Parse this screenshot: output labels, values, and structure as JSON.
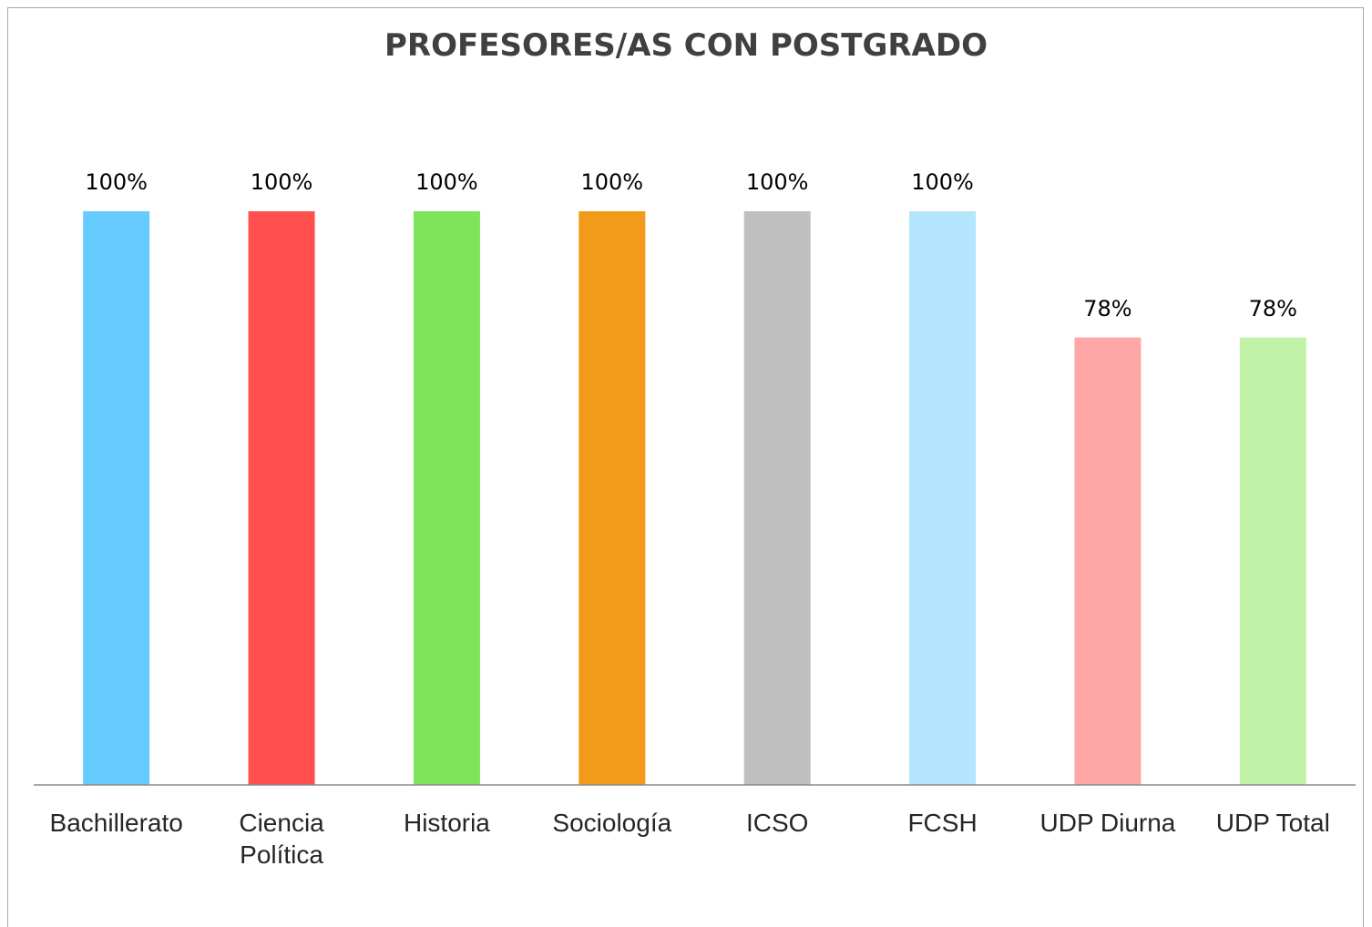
{
  "chart_data": {
    "type": "bar",
    "title": "PROFESORES/AS CON POSTGRADO",
    "categories": [
      "Bachillerato",
      "Ciencia Política",
      "Historia",
      "Sociología",
      "ICSO",
      "FCSH",
      "UDP Diurna",
      "UDP Total"
    ],
    "values": [
      100,
      100,
      100,
      100,
      100,
      100,
      78,
      78
    ],
    "value_labels": [
      "100%",
      "100%",
      "100%",
      "100%",
      "100%",
      "100%",
      "78%",
      "78%"
    ],
    "colors": [
      "#66ccff",
      "#ff4f4f",
      "#80e45a",
      "#f49a1a",
      "#bfbfbf",
      "#b3e5fc",
      "#ffa6a6",
      "#c2f2a8"
    ]
  }
}
